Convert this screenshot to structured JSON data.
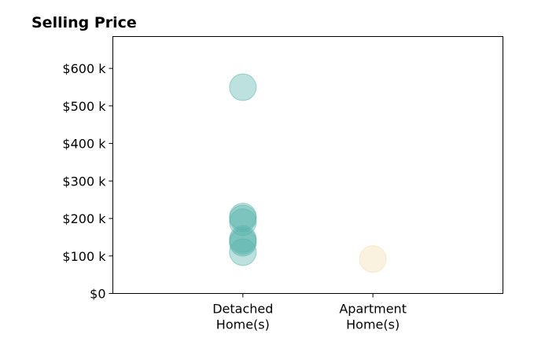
{
  "chart_data": {
    "type": "scatter",
    "title": "Selling Price",
    "xlabel": "",
    "ylabel": "",
    "categories": [
      "Detached\nHome(s)",
      "Apartment\nHome(s)"
    ],
    "x_range": [
      0,
      3
    ],
    "ylim": [
      0,
      685000
    ],
    "y_ticks": [
      0,
      100000,
      200000,
      300000,
      400000,
      500000,
      600000
    ],
    "y_tick_labels": [
      "$0",
      "$100 k",
      "$200 k",
      "$300 k",
      "$400 k",
      "$500 k",
      "$600 k"
    ],
    "grid": false,
    "series": [
      {
        "category_index": 0,
        "color": "#5ab4ac",
        "values": [
          550000,
          205000,
          200000,
          190000,
          145000,
          140000,
          135000,
          110000
        ]
      },
      {
        "category_index": 1,
        "color": "#f2dfb0",
        "values": [
          92000
        ]
      }
    ]
  }
}
